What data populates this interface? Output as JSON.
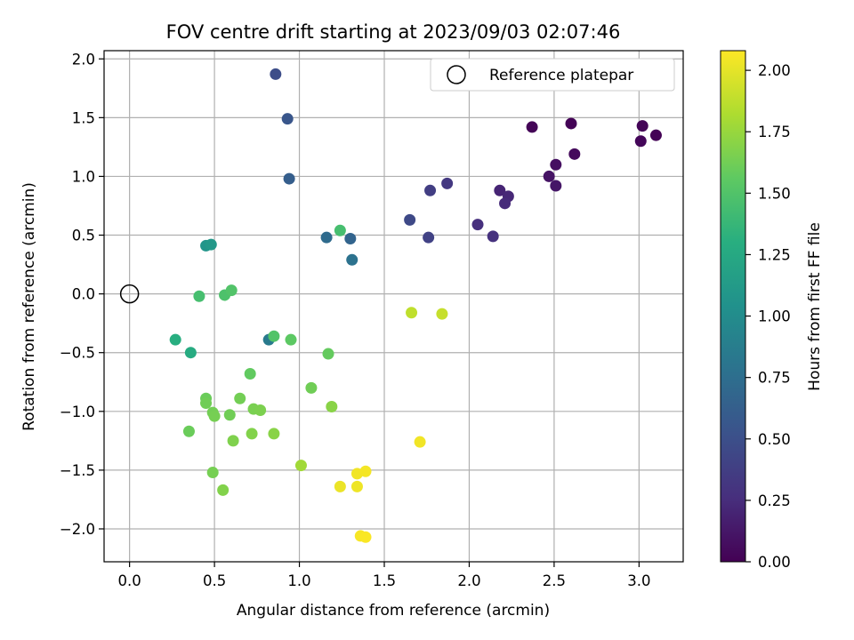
{
  "chart_data": {
    "type": "scatter",
    "title": "FOV centre drift starting at 2023/09/03 02:07:46",
    "xlabel": "Angular distance from reference (arcmin)",
    "ylabel": "Rotation from reference (arcmin)",
    "xlim": [
      -0.15,
      3.26
    ],
    "ylim": [
      -2.28,
      2.07
    ],
    "xticks": [
      0.0,
      0.5,
      1.0,
      1.5,
      2.0,
      2.5,
      3.0
    ],
    "xtick_labels": [
      "0.0",
      "0.5",
      "1.0",
      "1.5",
      "2.0",
      "2.5",
      "3.0"
    ],
    "yticks": [
      -2.0,
      -1.5,
      -1.0,
      -0.5,
      0.0,
      0.5,
      1.0,
      1.5,
      2.0
    ],
    "ytick_labels": [
      "−2.0",
      "−1.5",
      "−1.0",
      "−0.5",
      "0.0",
      "0.5",
      "1.0",
      "1.5",
      "2.0"
    ],
    "grid": true,
    "legend": {
      "position": "upper-right",
      "label": "Reference platepar",
      "marker": "open-circle"
    },
    "reference_point": {
      "x": 0.0,
      "y": 0.0
    },
    "colorbar": {
      "label": "Hours from first FF file",
      "colormap": "viridis",
      "range": [
        0.0,
        2.08
      ],
      "ticks": [
        0.0,
        0.25,
        0.5,
        0.75,
        1.0,
        1.25,
        1.5,
        1.75,
        2.0
      ],
      "tick_labels": [
        "0.00",
        "0.25",
        "0.50",
        "0.75",
        "1.00",
        "1.25",
        "1.50",
        "1.75",
        "2.00"
      ]
    },
    "points": [
      {
        "x": 2.37,
        "y": 1.42,
        "c": 0.02
      },
      {
        "x": 2.6,
        "y": 1.45,
        "c": 0.01
      },
      {
        "x": 3.02,
        "y": 1.43,
        "c": 0.02
      },
      {
        "x": 3.01,
        "y": 1.3,
        "c": 0.03
      },
      {
        "x": 3.1,
        "y": 1.35,
        "c": 0.01
      },
      {
        "x": 2.62,
        "y": 1.19,
        "c": 0.05
      },
      {
        "x": 2.51,
        "y": 1.1,
        "c": 0.08
      },
      {
        "x": 2.47,
        "y": 1.0,
        "c": 0.1
      },
      {
        "x": 2.51,
        "y": 0.92,
        "c": 0.12
      },
      {
        "x": 2.18,
        "y": 0.88,
        "c": 0.2
      },
      {
        "x": 2.23,
        "y": 0.83,
        "c": 0.22
      },
      {
        "x": 2.21,
        "y": 0.77,
        "c": 0.24
      },
      {
        "x": 2.05,
        "y": 0.59,
        "c": 0.27
      },
      {
        "x": 2.14,
        "y": 0.49,
        "c": 0.28
      },
      {
        "x": 1.87,
        "y": 0.94,
        "c": 0.33
      },
      {
        "x": 1.77,
        "y": 0.88,
        "c": 0.37
      },
      {
        "x": 1.76,
        "y": 0.48,
        "c": 0.4
      },
      {
        "x": 1.65,
        "y": 0.63,
        "c": 0.45
      },
      {
        "x": 0.86,
        "y": 1.87,
        "c": 0.48
      },
      {
        "x": 0.93,
        "y": 1.49,
        "c": 0.55
      },
      {
        "x": 0.94,
        "y": 0.98,
        "c": 0.62
      },
      {
        "x": 1.16,
        "y": 0.48,
        "c": 0.72
      },
      {
        "x": 1.3,
        "y": 0.47,
        "c": 0.67
      },
      {
        "x": 1.31,
        "y": 0.29,
        "c": 0.78
      },
      {
        "x": 0.45,
        "y": 0.41,
        "c": 1.08
      },
      {
        "x": 0.48,
        "y": 0.42,
        "c": 1.1
      },
      {
        "x": 0.82,
        "y": -0.39,
        "c": 0.85
      },
      {
        "x": 0.27,
        "y": -0.39,
        "c": 1.3
      },
      {
        "x": 0.36,
        "y": -0.5,
        "c": 1.27
      },
      {
        "x": 0.41,
        "y": -0.02,
        "c": 1.45
      },
      {
        "x": 0.56,
        "y": -0.01,
        "c": 1.48
      },
      {
        "x": 0.6,
        "y": 0.03,
        "c": 1.5
      },
      {
        "x": 1.24,
        "y": 0.54,
        "c": 1.45
      },
      {
        "x": 0.85,
        "y": -0.36,
        "c": 1.5
      },
      {
        "x": 0.95,
        "y": -0.39,
        "c": 1.55
      },
      {
        "x": 1.17,
        "y": -0.51,
        "c": 1.58
      },
      {
        "x": 0.71,
        "y": -0.68,
        "c": 1.57
      },
      {
        "x": 1.07,
        "y": -0.8,
        "c": 1.62
      },
      {
        "x": 0.65,
        "y": -0.89,
        "c": 1.63
      },
      {
        "x": 0.45,
        "y": -0.89,
        "c": 1.6
      },
      {
        "x": 0.45,
        "y": -0.93,
        "c": 1.62
      },
      {
        "x": 0.73,
        "y": -0.98,
        "c": 1.65
      },
      {
        "x": 0.77,
        "y": -0.99,
        "c": 1.66
      },
      {
        "x": 1.19,
        "y": -0.96,
        "c": 1.7
      },
      {
        "x": 0.49,
        "y": -1.01,
        "c": 1.63
      },
      {
        "x": 0.5,
        "y": -1.04,
        "c": 1.64
      },
      {
        "x": 0.59,
        "y": -1.03,
        "c": 1.62
      },
      {
        "x": 0.35,
        "y": -1.17,
        "c": 1.6
      },
      {
        "x": 0.72,
        "y": -1.19,
        "c": 1.68
      },
      {
        "x": 0.85,
        "y": -1.19,
        "c": 1.7
      },
      {
        "x": 0.61,
        "y": -1.25,
        "c": 1.67
      },
      {
        "x": 0.49,
        "y": -1.52,
        "c": 1.64
      },
      {
        "x": 0.55,
        "y": -1.67,
        "c": 1.68
      },
      {
        "x": 1.01,
        "y": -1.46,
        "c": 1.78
      },
      {
        "x": 1.66,
        "y": -0.16,
        "c": 1.88
      },
      {
        "x": 1.84,
        "y": -0.17,
        "c": 1.9
      },
      {
        "x": 1.71,
        "y": -1.26,
        "c": 2.04
      },
      {
        "x": 1.24,
        "y": -1.64,
        "c": 2.02
      },
      {
        "x": 1.34,
        "y": -1.53,
        "c": 2.04
      },
      {
        "x": 1.39,
        "y": -1.51,
        "c": 2.05
      },
      {
        "x": 1.34,
        "y": -1.64,
        "c": 2.03
      },
      {
        "x": 1.36,
        "y": -2.06,
        "c": 2.06
      },
      {
        "x": 1.39,
        "y": -2.07,
        "c": 2.07
      }
    ]
  }
}
